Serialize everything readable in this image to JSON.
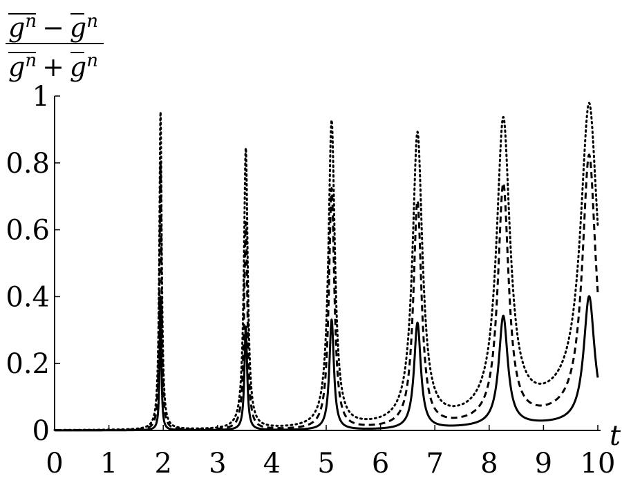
{
  "chart_data": {
    "type": "line",
    "xlabel": "t",
    "ylabel_numerator_parts": [
      "g",
      "n",
      "−",
      "g",
      "n"
    ],
    "ylabel_denominator_parts": [
      "g",
      "n",
      "+",
      "g",
      "n"
    ],
    "xlim": [
      0,
      10
    ],
    "ylim": [
      0,
      1
    ],
    "x_ticks": [
      0,
      1,
      2,
      3,
      4,
      5,
      6,
      7,
      8,
      9,
      10
    ],
    "x_tick_labels": [
      "0",
      "1",
      "2",
      "3",
      "4",
      "5",
      "6",
      "7",
      "8",
      "9",
      "10"
    ],
    "y_ticks": [
      0,
      0.2,
      0.4,
      0.6,
      0.8,
      1
    ],
    "y_tick_labels": [
      "0",
      "0.2",
      "0.4",
      "0.6",
      "0.8",
      "1"
    ],
    "grid": false,
    "legend": "none",
    "line_color": "#000000",
    "peak_times": [
      1.95,
      3.52,
      5.1,
      6.68,
      8.26,
      9.84
    ],
    "series": [
      {
        "style": "solid",
        "peak_values": [
          0.4,
          0.31,
          0.33,
          0.32,
          0.34,
          0.4
        ],
        "peak_half_widths": [
          0.018,
          0.03,
          0.05,
          0.075,
          0.1,
          0.12
        ],
        "floor_values": [
          0,
          0,
          0,
          0.001,
          0.012,
          0.02
        ]
      },
      {
        "style": "dashed",
        "peak_values": [
          0.8,
          0.62,
          0.72,
          0.68,
          0.73,
          0.82
        ],
        "peak_half_widths": [
          0.022,
          0.036,
          0.06,
          0.09,
          0.12,
          0.15
        ],
        "floor_values": [
          0,
          0,
          0,
          0.003,
          0.02,
          0.045
        ]
      },
      {
        "style": "dotted",
        "peak_values": [
          0.95,
          0.84,
          0.92,
          0.88,
          0.92,
          0.97
        ],
        "peak_half_widths": [
          0.026,
          0.042,
          0.07,
          0.11,
          0.15,
          0.19
        ],
        "floor_values": [
          0,
          0,
          0.003,
          0.01,
          0.035,
          0.09
        ]
      }
    ]
  }
}
